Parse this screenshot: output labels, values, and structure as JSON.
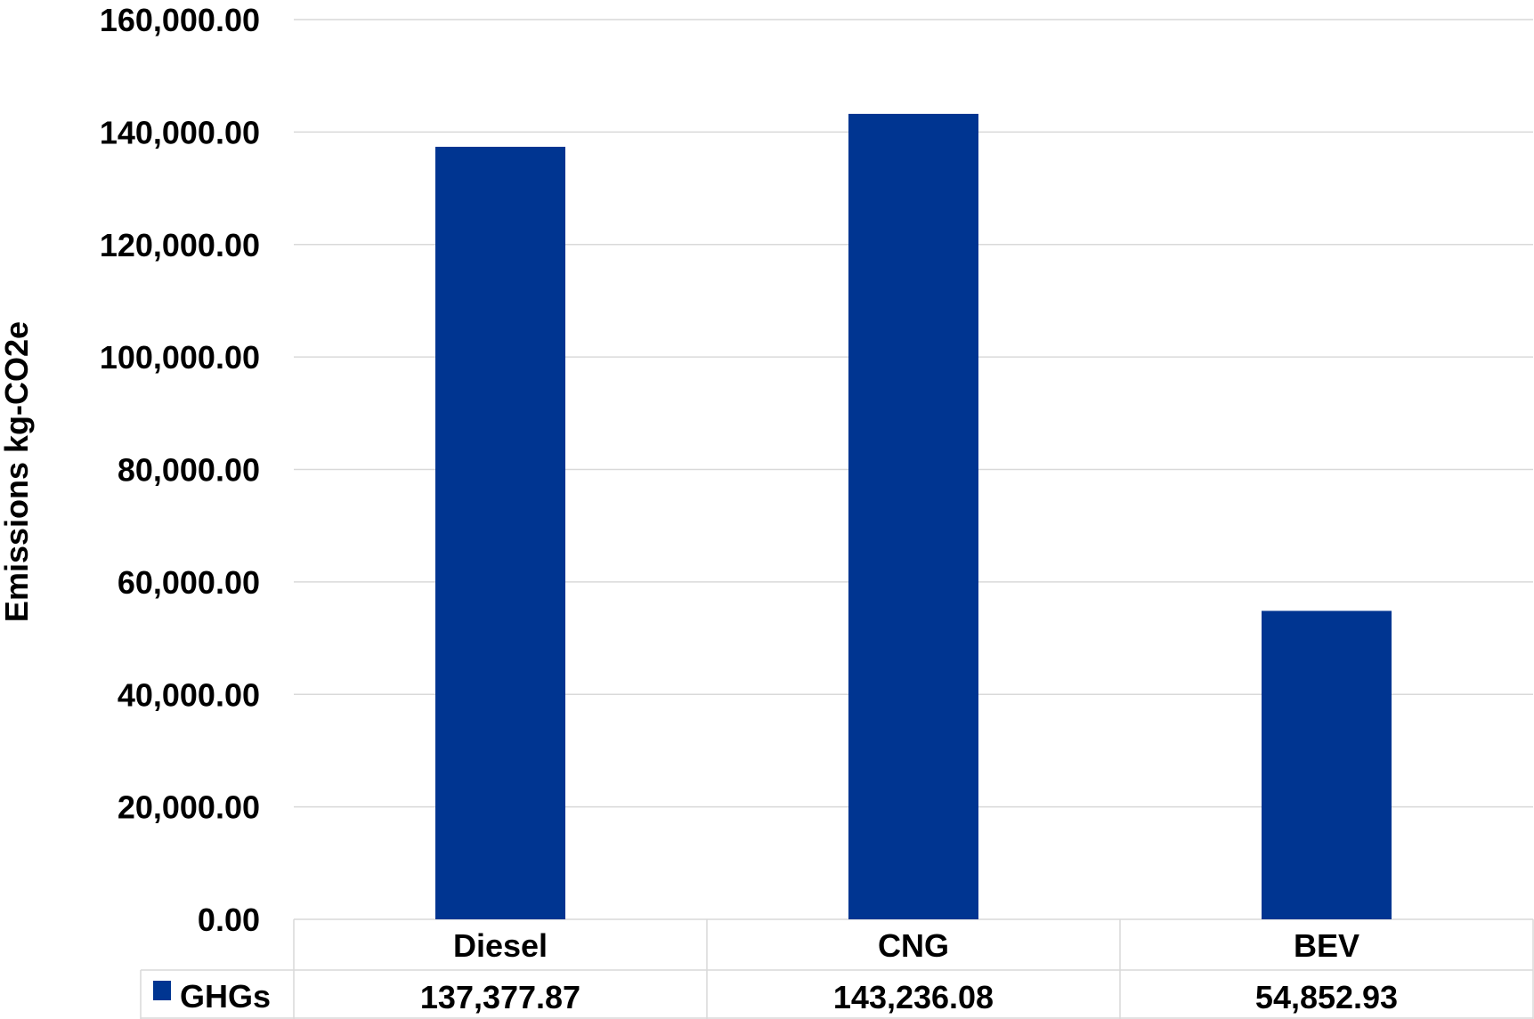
{
  "chart_data": {
    "type": "bar",
    "title": "",
    "xlabel": "",
    "ylabel": "Emissions kg-CO2e",
    "ylim": [
      0,
      160000
    ],
    "y_ticks": [
      0,
      20000,
      40000,
      60000,
      80000,
      100000,
      120000,
      140000,
      160000
    ],
    "y_tick_labels": [
      "0.00",
      "20,000.00",
      "40,000.00",
      "60,000.00",
      "80,000.00",
      "100,000.00",
      "120,000.00",
      "140,000.00",
      "160,000.00"
    ],
    "categories": [
      "Diesel",
      "CNG",
      "BEV"
    ],
    "series": [
      {
        "name": "GHGs",
        "color": "#003591",
        "values": [
          137377.87,
          143236.08,
          54852.93
        ],
        "value_labels": [
          "137,377.87",
          "143,236.08",
          "54,852.93"
        ]
      }
    ],
    "grid": true,
    "legend": "data-table-row",
    "data_table": true
  }
}
